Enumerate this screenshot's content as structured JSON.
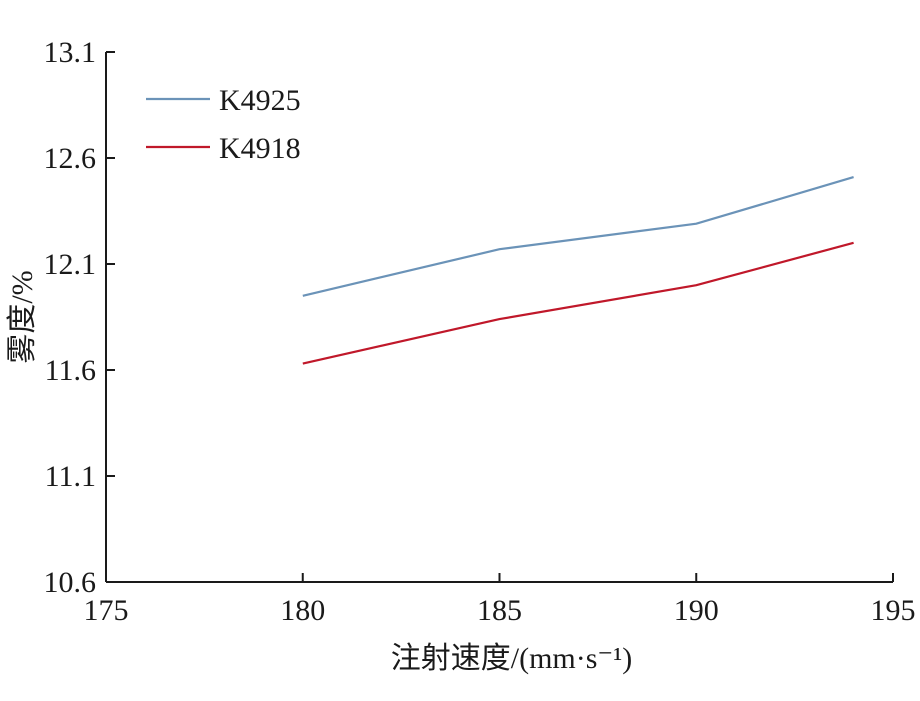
{
  "chart_data": {
    "type": "line",
    "xlabel": "注射速度/(mm·s⁻¹)",
    "ylabel": "雾度/%",
    "xlim": [
      175,
      195
    ],
    "ylim": [
      10.6,
      13.1
    ],
    "x_ticks": [
      175,
      180,
      185,
      190,
      195
    ],
    "y_ticks": [
      "10.6",
      "11.1",
      "11.6",
      "12.1",
      "12.6",
      "13.1"
    ],
    "grid": false,
    "legend_position": "top-left",
    "series": [
      {
        "name": "K4925",
        "color": "#6b93b8",
        "x": [
          180,
          185,
          190,
          194
        ],
        "y": [
          11.95,
          12.17,
          12.29,
          12.51
        ]
      },
      {
        "name": "K4918",
        "color": "#c0182a",
        "x": [
          180,
          185,
          190,
          194
        ],
        "y": [
          11.63,
          11.84,
          12.0,
          12.2
        ]
      }
    ]
  }
}
